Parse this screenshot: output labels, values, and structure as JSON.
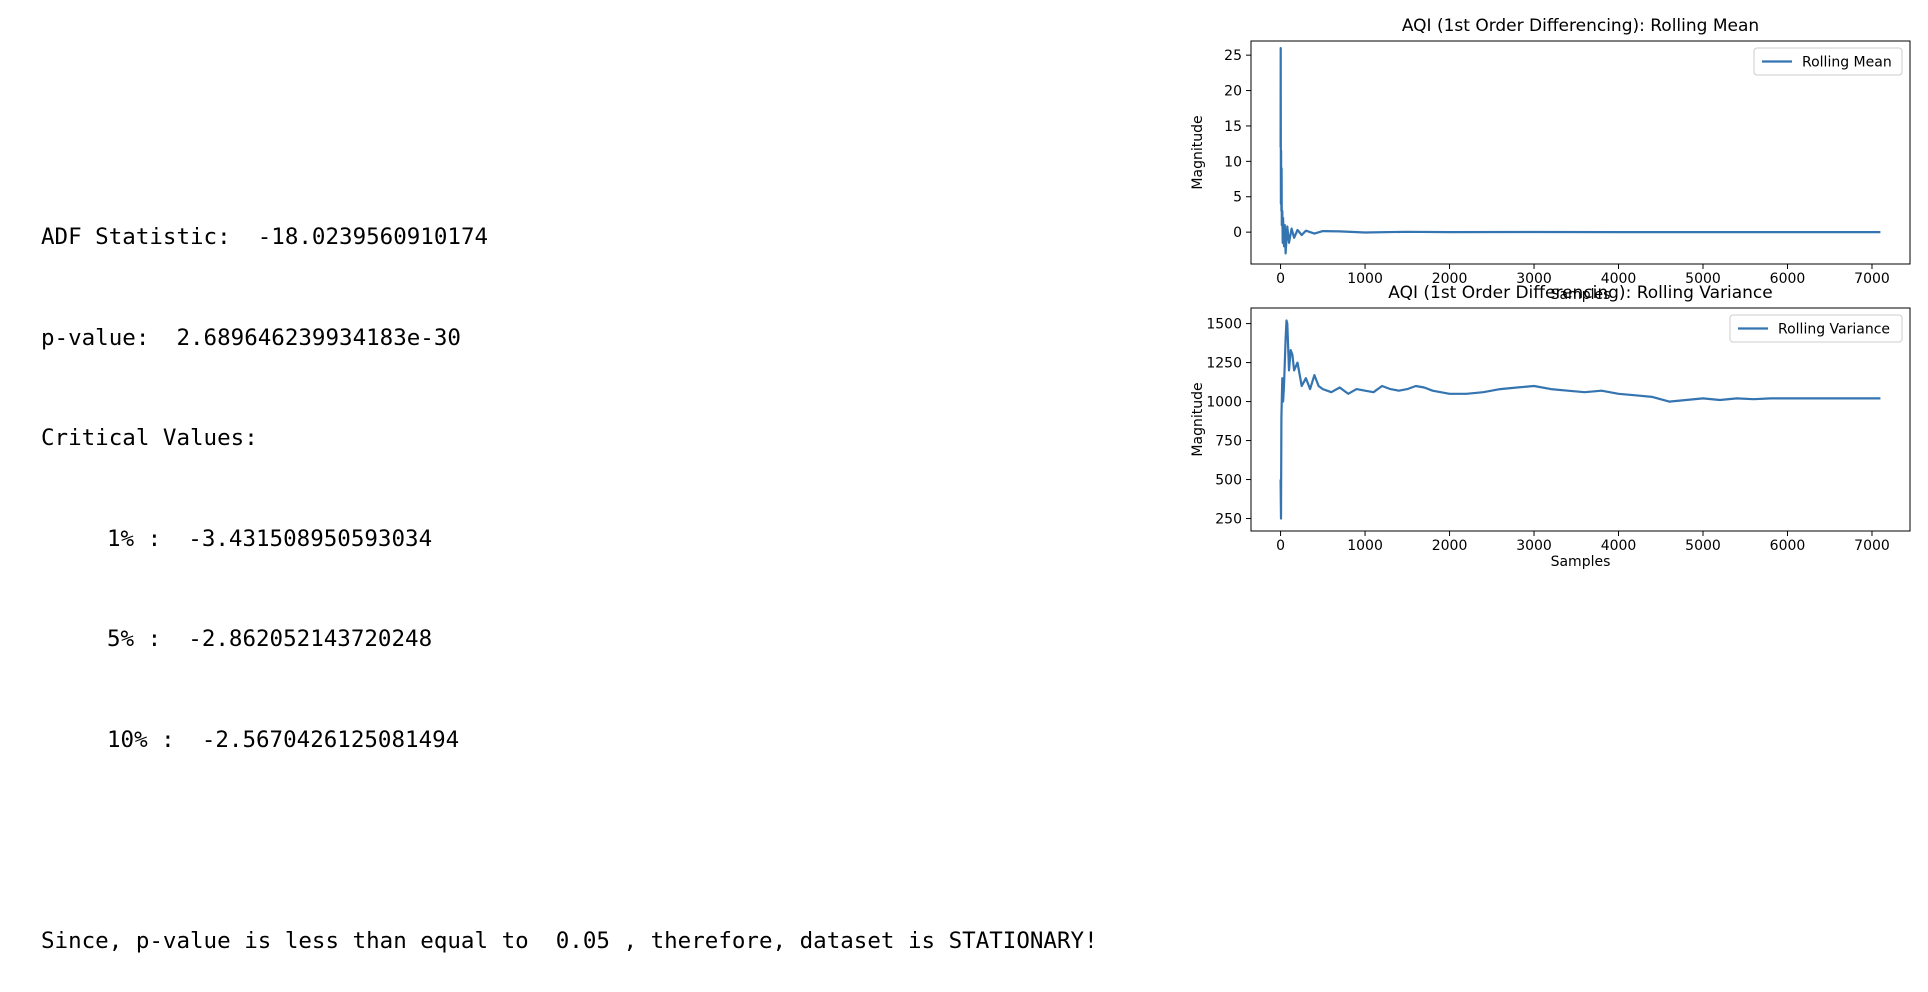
{
  "console": {
    "adf_label": "ADF Statistic:",
    "adf_value": "-18.0239560910174",
    "pvalue_label": "p-value:",
    "pvalue_value": "2.689646239934183e-30",
    "critical_label": "Critical Values:",
    "critical_values": [
      {
        "key": "1%",
        "value": "-3.431508950593034"
      },
      {
        "key": "5%",
        "value": "-2.862052143720248"
      },
      {
        "key": "10%",
        "value": "-2.5670426125081494"
      }
    ],
    "conclusion_prefix": "Since, p-value is less than equal to",
    "conclusion_threshold": "0.05",
    "conclusion_suffix": ", therefore, dataset is STATIONARY!"
  },
  "colors": {
    "line": "#3474b0"
  },
  "chart_data": [
    {
      "type": "line",
      "title": "AQI (1st Order Differencing): Rolling Mean",
      "xlabel": "Samples",
      "ylabel": "Magnitude",
      "xlim": [
        -350,
        7450
      ],
      "ylim": [
        -4.5,
        27
      ],
      "xticks": [
        0,
        1000,
        2000,
        3000,
        4000,
        5000,
        6000,
        7000
      ],
      "yticks": [
        0,
        5,
        10,
        15,
        20,
        25
      ],
      "legend_position": "top-right",
      "grid": false,
      "series": [
        {
          "name": "Rolling Mean",
          "x": [
            0,
            2,
            4,
            6,
            8,
            10,
            12,
            15,
            20,
            25,
            30,
            40,
            50,
            60,
            80,
            100,
            130,
            160,
            200,
            250,
            300,
            400,
            500,
            700,
            1000,
            1500,
            2000,
            3000,
            4000,
            5000,
            6000,
            7100
          ],
          "y": [
            12,
            26,
            4,
            11.5,
            7,
            3,
            9,
            1,
            3,
            -1.5,
            2,
            -2,
            1,
            -3,
            0.8,
            -1.5,
            0.5,
            -0.8,
            0.3,
            -0.4,
            0.2,
            -0.2,
            0.15,
            0.1,
            -0.05,
            0.05,
            0.0,
            0.02,
            0.0,
            0.01,
            0.0,
            0.0
          ]
        }
      ]
    },
    {
      "type": "line",
      "title": "AQI (1st Order Differencing): Rolling Variance",
      "xlabel": "Samples",
      "ylabel": "Magnitude",
      "xlim": [
        -350,
        7450
      ],
      "ylim": [
        170,
        1600
      ],
      "xticks": [
        0,
        1000,
        2000,
        3000,
        4000,
        5000,
        6000,
        7000
      ],
      "yticks": [
        250,
        500,
        750,
        1000,
        1250,
        1500
      ],
      "legend_position": "top-right",
      "grid": false,
      "series": [
        {
          "name": "Rolling Variance",
          "x": [
            0,
            5,
            10,
            20,
            30,
            40,
            50,
            60,
            70,
            80,
            100,
            120,
            140,
            160,
            200,
            250,
            300,
            350,
            400,
            450,
            500,
            600,
            700,
            800,
            900,
            1000,
            1100,
            1200,
            1300,
            1400,
            1500,
            1600,
            1700,
            1800,
            2000,
            2200,
            2400,
            2600,
            2800,
            3000,
            3200,
            3400,
            3600,
            3800,
            4000,
            4200,
            4400,
            4600,
            4800,
            5000,
            5200,
            5400,
            5600,
            5800,
            6000,
            6500,
            7100
          ],
          "y": [
            500,
            250,
            900,
            1150,
            1000,
            1100,
            1250,
            1400,
            1520,
            1500,
            1200,
            1330,
            1300,
            1200,
            1250,
            1100,
            1150,
            1080,
            1170,
            1100,
            1080,
            1060,
            1090,
            1050,
            1080,
            1070,
            1060,
            1100,
            1080,
            1070,
            1080,
            1100,
            1090,
            1070,
            1050,
            1050,
            1060,
            1080,
            1090,
            1100,
            1080,
            1070,
            1060,
            1070,
            1050,
            1040,
            1030,
            1000,
            1010,
            1020,
            1010,
            1020,
            1015,
            1020,
            1020,
            1020,
            1020
          ]
        }
      ]
    }
  ]
}
